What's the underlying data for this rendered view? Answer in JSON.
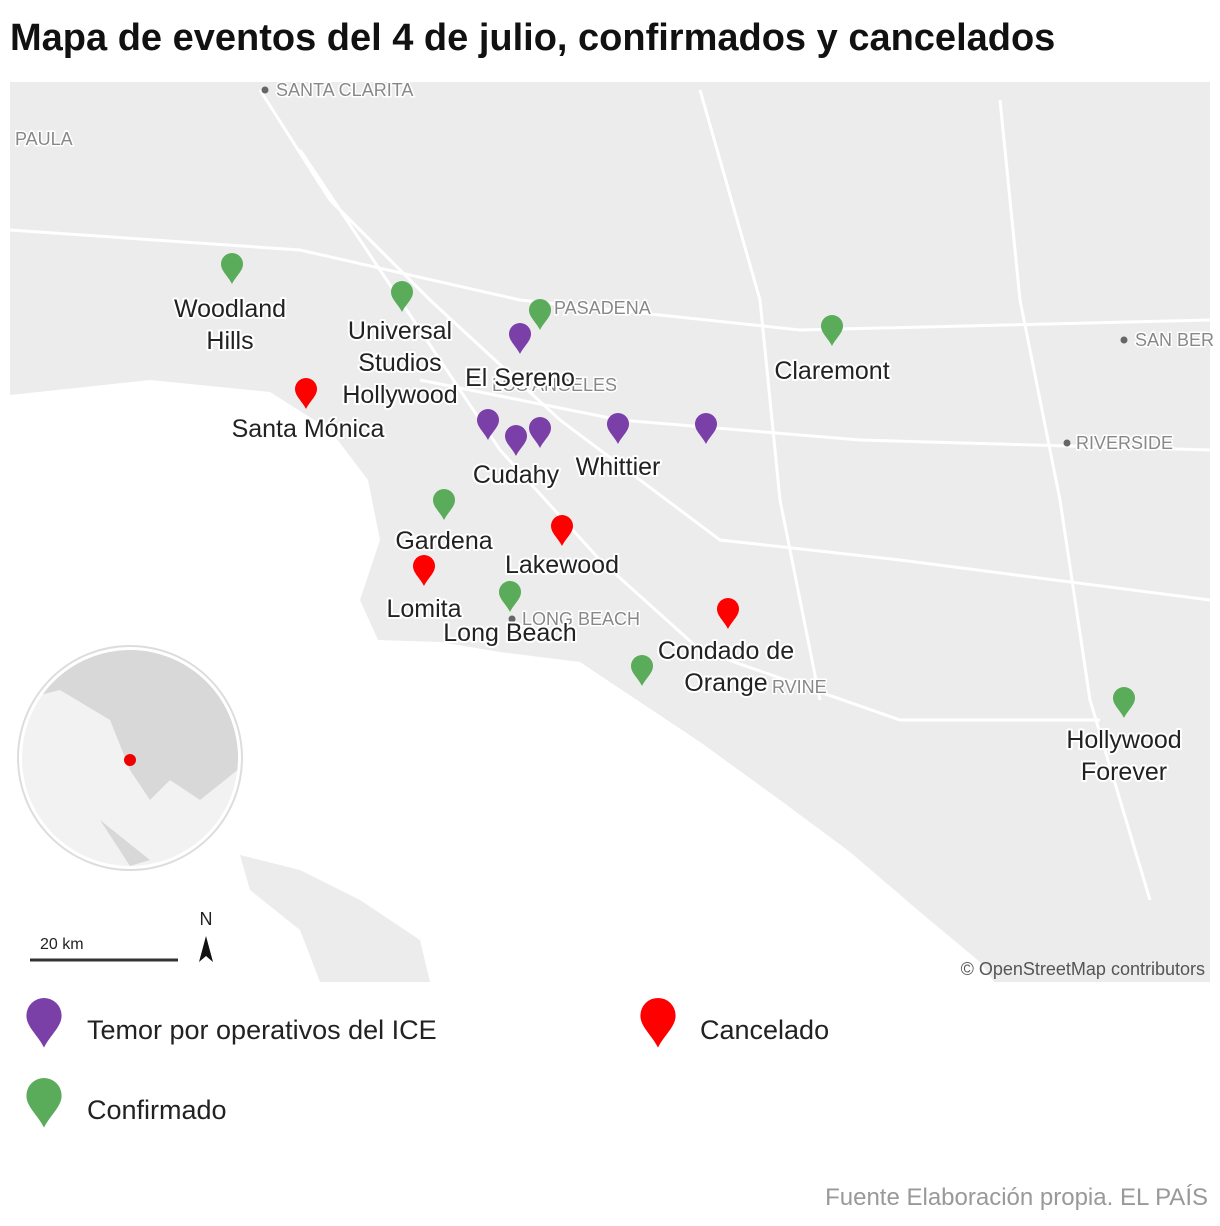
{
  "title": "Mapa de eventos del 4 de julio, confirmados y cancelados",
  "base_labels": [
    "SANTA CLARITA",
    "PAULA",
    "PASADENA",
    "LOS ANGELES",
    "SAN BER",
    "RIVERSIDE",
    "LONG BEACH",
    "RVINE"
  ],
  "legend": [
    {
      "label": "Temor por operativos del ICE",
      "color": "#7b3fa8",
      "markers": [
        [
          "El Sereno"
        ],
        null,
        [
          "Cudahy"
        ],
        null,
        [
          "Whittier"
        ],
        null
      ]
    },
    {
      "label": "Cancelado",
      "color": "#ff0000",
      "markers": [
        [
          "Santa Mónica"
        ],
        [
          "Lakewood"
        ],
        [
          "Lomita"
        ],
        [
          "Condado de",
          "Orange"
        ]
      ]
    },
    {
      "label": "Confirmado",
      "color": "#5aab5a",
      "markers": [
        [
          "Woodland",
          "Hills"
        ],
        [
          "Universal",
          "Studios",
          "Hollywood"
        ],
        null,
        [
          "Claremont"
        ],
        [
          "Gardena"
        ],
        [
          "Long Beach"
        ],
        null,
        [
          "Hollywood",
          "Forever"
        ]
      ]
    }
  ],
  "scale_label": "20 km",
  "north": "N",
  "attribution": "© OpenStreetMap contributors",
  "source": "Fuente Elaboración propia. EL PAÍS"
}
